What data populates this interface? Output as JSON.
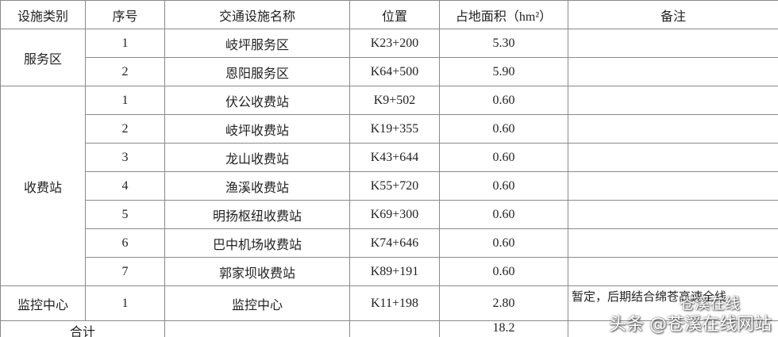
{
  "table": {
    "header": [
      "设施类别",
      "序号",
      "交通设施名称",
      "位置",
      "占地面积（hm²）",
      "备注"
    ],
    "groups": [
      {
        "category": "服务区",
        "rows": [
          {
            "no": "1",
            "name": "岐坪服务区",
            "location": "K23+200",
            "area": "5.30"
          },
          {
            "no": "2",
            "name": "恩阳服务区",
            "location": "K64+500",
            "area": "5.90"
          }
        ]
      },
      {
        "category": "收费站",
        "rows": [
          {
            "no": "1",
            "name": "伏公收费站",
            "location": "K9+502",
            "area": "0.60"
          },
          {
            "no": "2",
            "name": "岐坪收费站",
            "location": "K19+355",
            "area": "0.60"
          },
          {
            "no": "3",
            "name": "龙山收费站",
            "location": "K43+644",
            "area": "0.60"
          },
          {
            "no": "4",
            "name": "渔溪收费站",
            "location": "K55+720",
            "area": "0.60"
          },
          {
            "no": "5",
            "name": "明扬枢纽收费站",
            "location": "K69+300",
            "area": "0.60"
          },
          {
            "no": "6",
            "name": "巴中机场收费站",
            "location": "K74+646",
            "area": "0.60"
          },
          {
            "no": "7",
            "name": "郭家坝收费站",
            "location": "K89+191",
            "area": "0.60"
          }
        ]
      },
      {
        "category": "监控中心",
        "rows": [
          {
            "no": "1",
            "name": "监控中心",
            "location": "K11+198",
            "area": "2.80",
            "remark": "暂定，后期结合绵苍高速全线"
          }
        ]
      }
    ],
    "total": {
      "label": "合计",
      "area": "18.2"
    }
  },
  "watermark": [
    "苍溪在线",
    "头条 @苍溪在线网站"
  ]
}
